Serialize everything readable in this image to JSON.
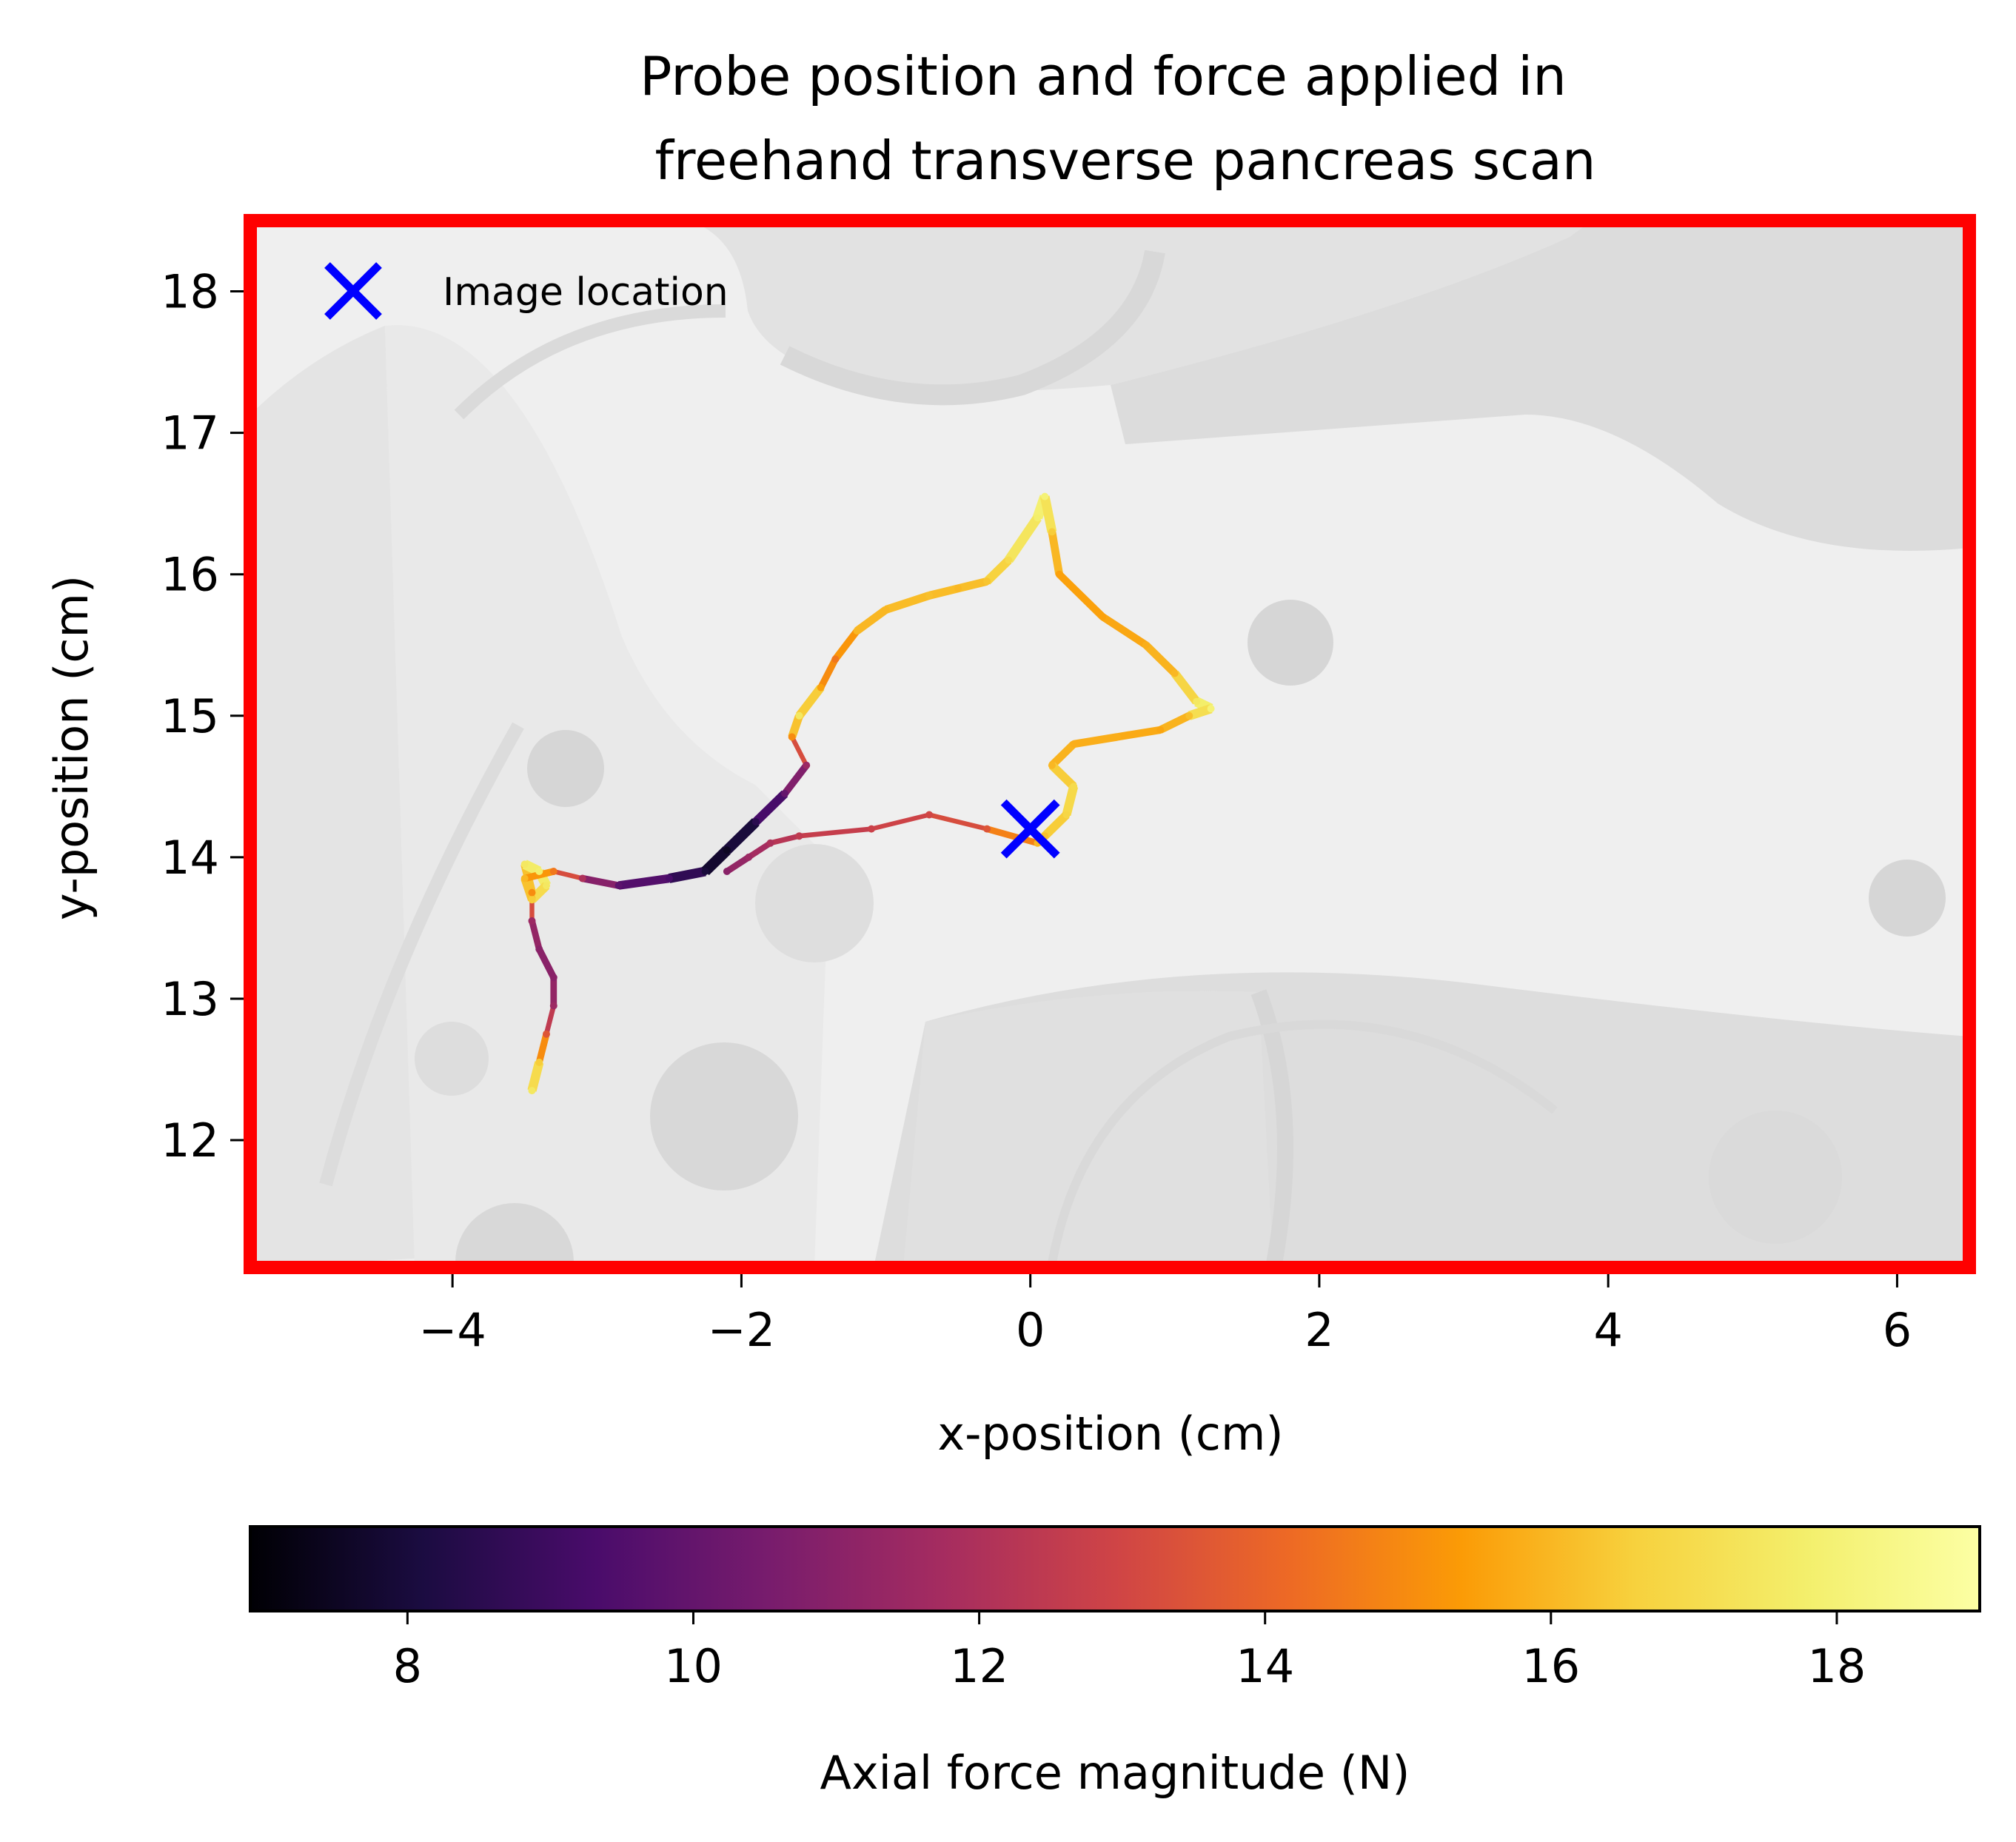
{
  "chart_data": {
    "type": "line",
    "title_lines": [
      "Probe position and force applied in",
      "freehand transverse pancreas scan"
    ],
    "xlabel": "x-position (cm)",
    "ylabel": "y-position (cm)",
    "xlim": [
      -5.4,
      6.5
    ],
    "ylim": [
      11.1,
      18.5
    ],
    "xticks": [
      -4,
      -2,
      0,
      2,
      4,
      6
    ],
    "xtick_labels": [
      "−4",
      "−2",
      "0",
      "2",
      "4",
      "6"
    ],
    "yticks": [
      12,
      13,
      14,
      15,
      16,
      17,
      18
    ],
    "ytick_labels": [
      "12",
      "13",
      "14",
      "15",
      "16",
      "17",
      "18"
    ],
    "grid": false,
    "frame_color": "#ff0000",
    "background": "grayscale anatomical ultrasound image",
    "legend": {
      "position": "top-left",
      "entries": [
        {
          "label": "Image location",
          "marker": "x",
          "color": "#0000ff"
        }
      ]
    },
    "image_location": {
      "x": 0.0,
      "y": 14.2
    },
    "colorbar": {
      "label": "Axial force magnitude (N)",
      "colormap": "inferno",
      "range": [
        6.9,
        19.0
      ],
      "ticks": [
        8,
        10,
        12,
        14,
        16,
        18
      ],
      "tick_labels": [
        "8",
        "10",
        "12",
        "14",
        "16",
        "18"
      ],
      "orientation": "horizontal"
    },
    "series": [
      {
        "x": [
          -3.45,
          -3.4,
          -3.35,
          -3.3,
          -3.3,
          -3.4,
          -3.45,
          -3.45,
          -3.5,
          -3.4,
          -3.35,
          -3.45,
          -3.5,
          -3.3,
          -3.1,
          -2.85,
          -2.5,
          -2.25,
          -2.1,
          -1.9,
          -1.7,
          -1.55,
          -1.65,
          -1.6,
          -1.45,
          -1.35,
          -1.2,
          -1.0,
          -0.7,
          -0.5,
          -0.3,
          -0.15,
          0.05,
          0.1,
          0.15,
          0.2,
          0.5,
          0.8,
          1.0,
          1.15,
          1.25,
          1.1,
          0.9,
          0.6,
          0.3,
          0.15,
          0.3,
          0.25,
          0.1,
          0.05,
          -0.3,
          -0.7,
          -1.1,
          -1.6,
          -1.8,
          -1.95,
          -2.1
        ],
        "y": [
          12.35,
          12.55,
          12.75,
          12.95,
          13.15,
          13.35,
          13.55,
          13.75,
          13.95,
          13.9,
          13.8,
          13.7,
          13.85,
          13.9,
          13.85,
          13.8,
          13.85,
          13.9,
          14.05,
          14.25,
          14.45,
          14.65,
          14.85,
          15.0,
          15.2,
          15.4,
          15.6,
          15.75,
          15.85,
          15.9,
          15.95,
          16.1,
          16.4,
          16.55,
          16.3,
          16.0,
          15.7,
          15.5,
          15.3,
          15.1,
          15.05,
          15.0,
          14.9,
          14.85,
          14.8,
          14.65,
          14.5,
          14.3,
          14.15,
          14.1,
          14.2,
          14.3,
          14.2,
          14.15,
          14.1,
          14.0,
          13.9
        ],
        "force": [
          17.5,
          16.5,
          13.5,
          11.5,
          11.0,
          11.0,
          11.5,
          15.0,
          17.5,
          17.8,
          17.5,
          16.5,
          16.0,
          14.5,
          12.0,
          9.8,
          9.3,
          8.0,
          7.5,
          8.5,
          10.0,
          11.5,
          15.0,
          17.5,
          15.5,
          14.5,
          16.0,
          16.0,
          16.2,
          16.0,
          16.3,
          17.0,
          17.8,
          18.0,
          16.5,
          15.5,
          15.5,
          15.8,
          16.0,
          17.5,
          18.0,
          16.2,
          15.6,
          15.8,
          15.8,
          16.0,
          17.0,
          16.8,
          16.2,
          16.0,
          13.5,
          13.0,
          12.8,
          12.5,
          12.0,
          11.5,
          11.0
        ]
      }
    ]
  }
}
